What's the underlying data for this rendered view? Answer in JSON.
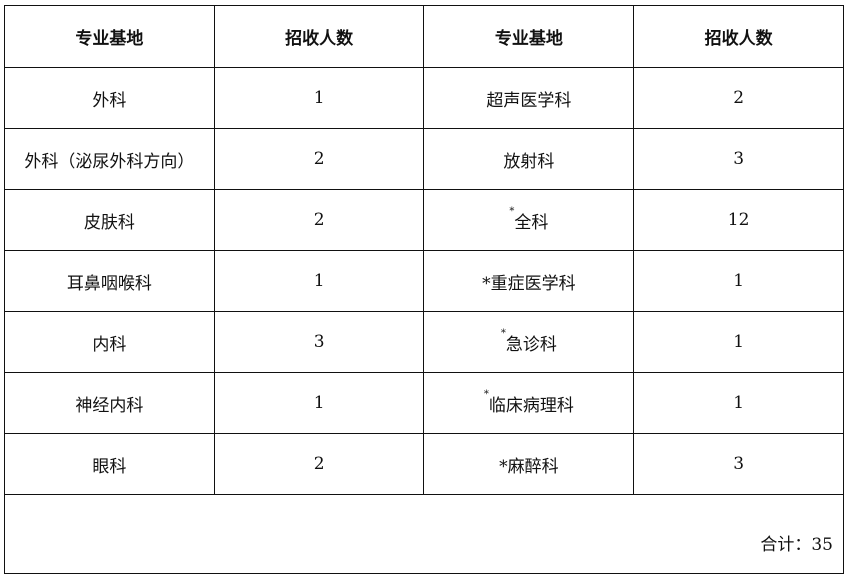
{
  "headers": [
    "专业基地",
    "招收人数",
    "专业基地",
    "招收人数"
  ],
  "rows": [
    {
      "left": {
        "mark": "",
        "sup": false,
        "name": "外科",
        "count": "1"
      },
      "right": {
        "mark": "",
        "sup": false,
        "name": "超声医学科",
        "count": "2"
      }
    },
    {
      "left": {
        "mark": "",
        "sup": false,
        "name": "外科（泌尿外科方向）",
        "count": "2"
      },
      "right": {
        "mark": "",
        "sup": false,
        "name": "放射科",
        "count": "3"
      }
    },
    {
      "left": {
        "mark": "",
        "sup": false,
        "name": "皮肤科",
        "count": "2"
      },
      "right": {
        "mark": "*",
        "sup": true,
        "name": "全科",
        "count": "12"
      }
    },
    {
      "left": {
        "mark": "",
        "sup": false,
        "name": "耳鼻咽喉科",
        "count": "1"
      },
      "right": {
        "mark": "*",
        "sup": false,
        "name": "重症医学科",
        "count": "1"
      }
    },
    {
      "left": {
        "mark": "",
        "sup": false,
        "name": "内科",
        "count": "3"
      },
      "right": {
        "mark": "*",
        "sup": true,
        "name": "急诊科",
        "count": "1"
      }
    },
    {
      "left": {
        "mark": "",
        "sup": false,
        "name": "神经内科",
        "count": "1"
      },
      "right": {
        "mark": "*",
        "sup": true,
        "name": "临床病理科",
        "count": "1"
      }
    },
    {
      "left": {
        "mark": "",
        "sup": false,
        "name": "眼科",
        "count": "2"
      },
      "right": {
        "mark": "*",
        "sup": false,
        "name": "麻醉科",
        "count": "3"
      }
    }
  ],
  "total": "合计：35"
}
